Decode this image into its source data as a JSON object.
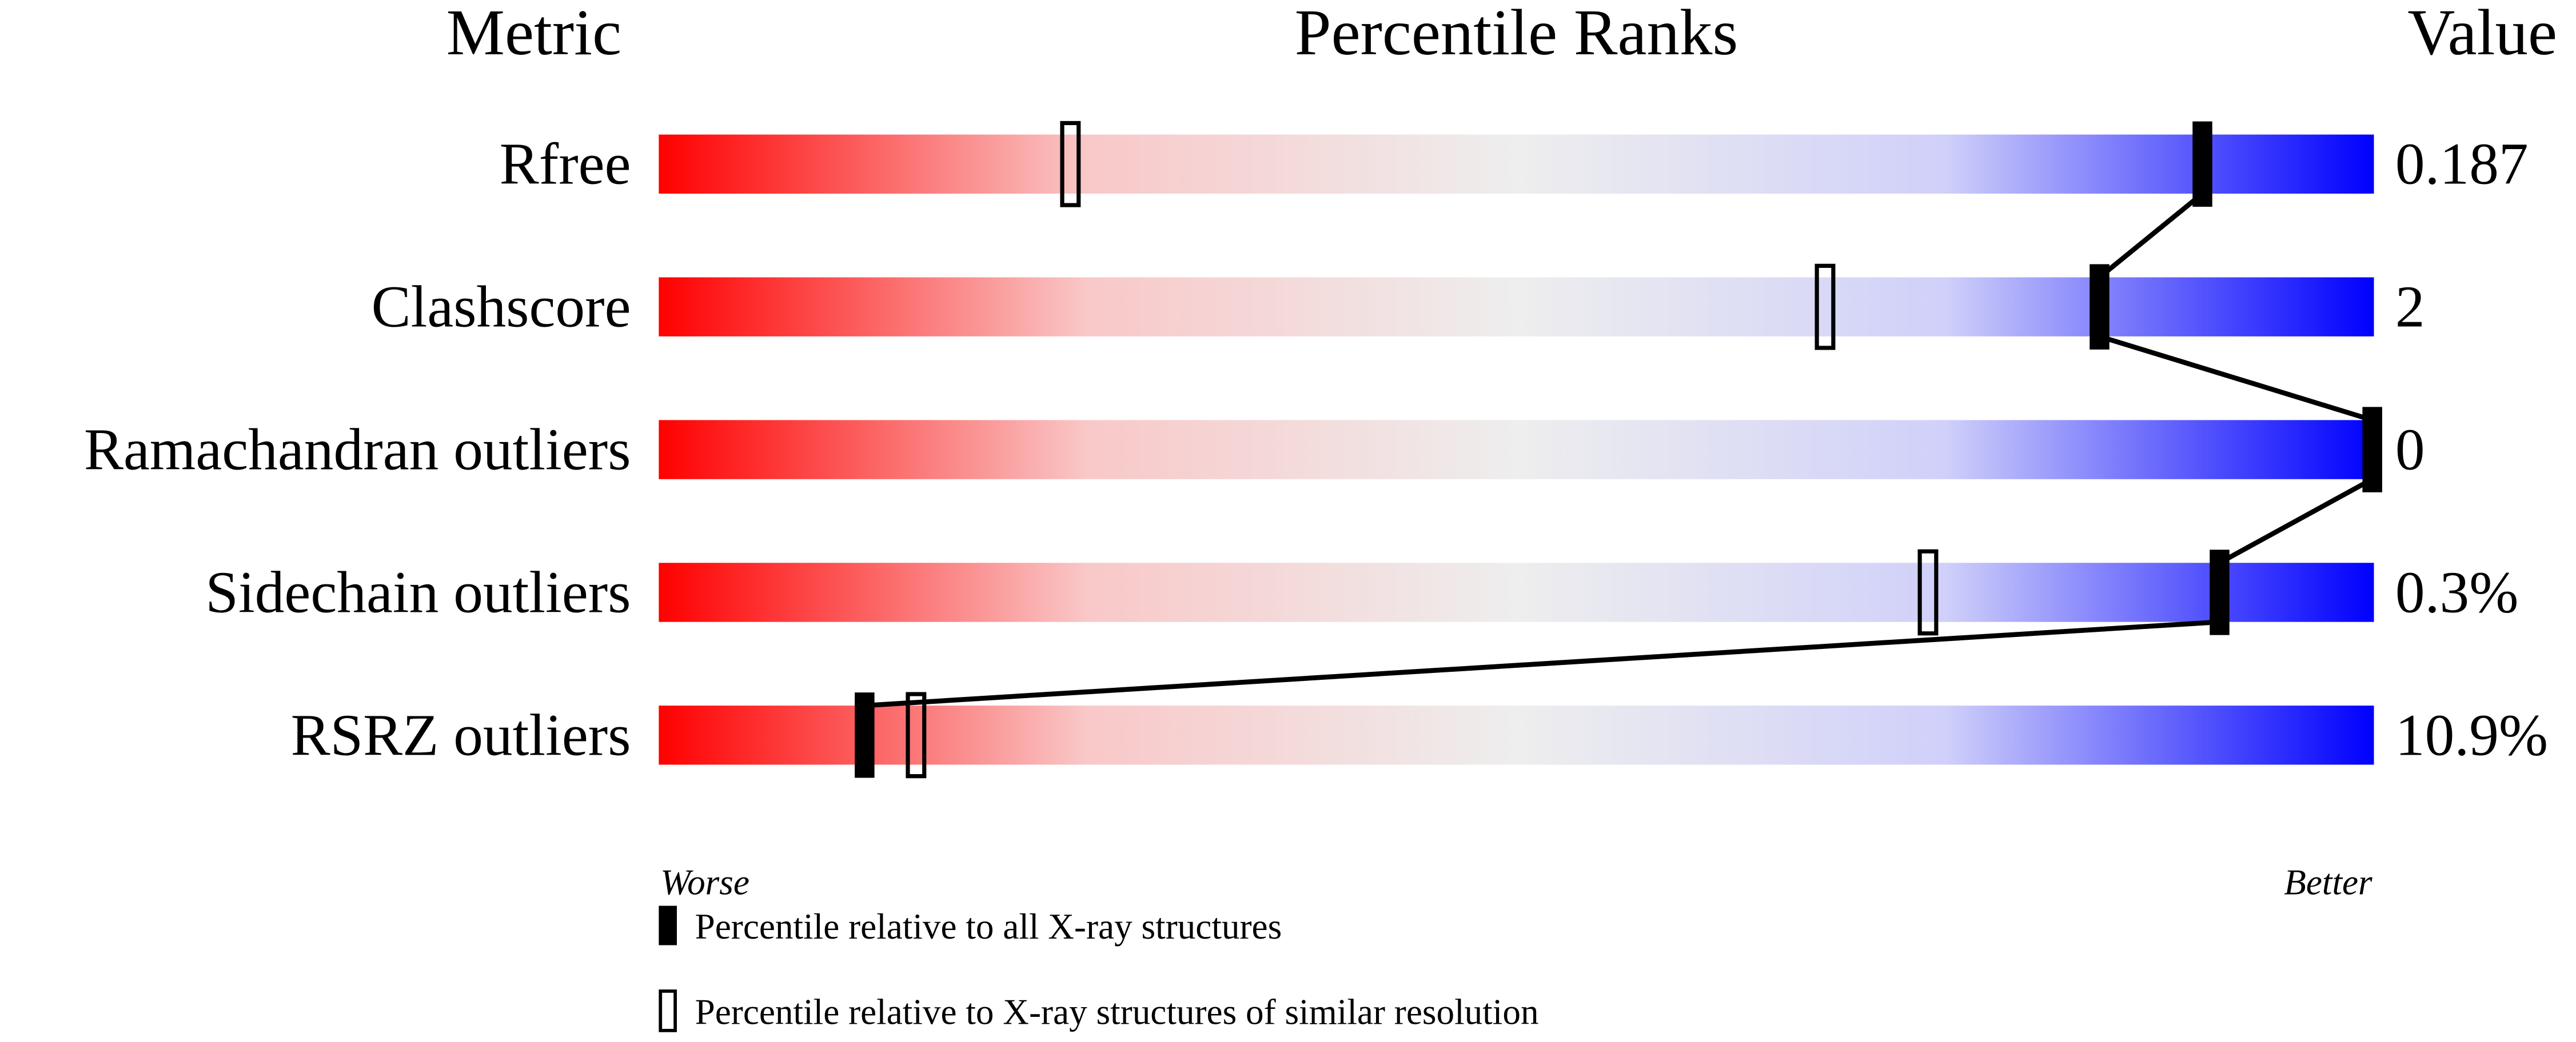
{
  "chart_data": {
    "type": "percentile-slider",
    "headers": {
      "metric": "Metric",
      "ranks": "Percentile Ranks",
      "value": "Value"
    },
    "xlim": [
      0,
      100
    ],
    "axis_ends": {
      "left": "Worse",
      "right": "Better"
    },
    "gradient_colors": [
      "#ff0000",
      "#f9c8c8",
      "#eeeeee",
      "#d0d0fa",
      "#0000ff"
    ],
    "metrics": [
      {
        "name": "Rfree",
        "value": "0.187",
        "percentile_all": 90,
        "percentile_similar": 24
      },
      {
        "name": "Clashscore",
        "value": "2",
        "percentile_all": 84,
        "percentile_similar": 68
      },
      {
        "name": "Ramachandran outliers",
        "value": "0",
        "percentile_all": 100,
        "percentile_similar": null
      },
      {
        "name": "Sidechain outliers",
        "value": "0.3%",
        "percentile_all": 91,
        "percentile_similar": 74
      },
      {
        "name": "RSRZ outliers",
        "value": "10.9%",
        "percentile_all": 12,
        "percentile_similar": 15
      }
    ],
    "legend": [
      {
        "marker": "filled",
        "label": "Percentile relative to all X-ray structures"
      },
      {
        "marker": "open",
        "label": "Percentile relative to X-ray structures of similar resolution"
      }
    ]
  }
}
